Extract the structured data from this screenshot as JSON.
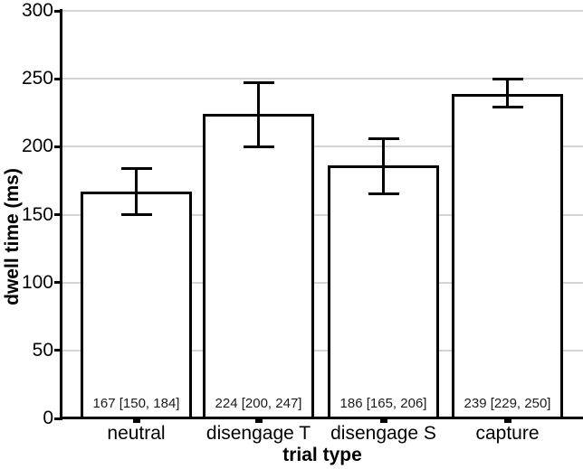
{
  "chart_data": {
    "type": "bar",
    "title": "",
    "xlabel": "trial type",
    "ylabel": "dwell time (ms)",
    "categories": [
      "neutral",
      "disengage T",
      "disengage S",
      "capture"
    ],
    "values": [
      167,
      224,
      186,
      239
    ],
    "error_bars": {
      "low": [
        150,
        200,
        165,
        229
      ],
      "high": [
        184,
        247,
        206,
        250
      ]
    },
    "bar_labels": [
      "167 [150, 184]",
      "224 [200, 247]",
      "186 [165, 206]",
      "239 [229, 250]"
    ],
    "ylim": [
      0,
      300
    ],
    "yticks": [
      0,
      50,
      100,
      150,
      200,
      250,
      300
    ],
    "grid": "horizontal gridlines at y ticks",
    "legend": "none",
    "colors": {
      "bar_fill": "#ffffff",
      "bar_border": "#000000",
      "error_bar": "#000000",
      "gridline": "#d3d3d3",
      "axis": "#000000",
      "text": "#000000"
    }
  }
}
